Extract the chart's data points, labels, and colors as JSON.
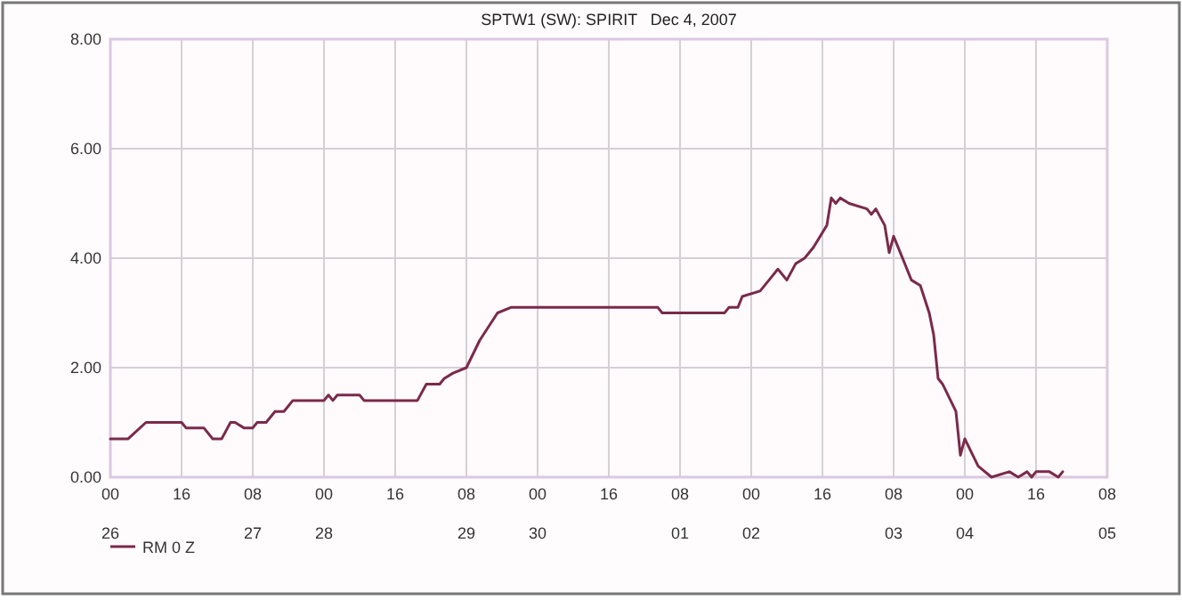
{
  "chart_data": {
    "type": "line",
    "title": "SPTW1 (SW): SPIRIT   Dec 4, 2007",
    "x": [
      "2007-11-26T00:00",
      "2007-11-26T04:00",
      "2007-11-26T08:00",
      "2007-11-26T16:00",
      "2007-11-26T17:00",
      "2007-11-26T21:00",
      "2007-11-26T23:00",
      "2007-11-27T01:00",
      "2007-11-27T03:00",
      "2007-11-27T04:00",
      "2007-11-27T06:00",
      "2007-11-27T08:00",
      "2007-11-27T09:00",
      "2007-11-27T11:00",
      "2007-11-27T13:00",
      "2007-11-27T15:00",
      "2007-11-27T17:00",
      "2007-11-28T00:00",
      "2007-11-28T01:00",
      "2007-11-28T02:00",
      "2007-11-28T03:00",
      "2007-11-28T08:00",
      "2007-11-28T09:00",
      "2007-11-28T21:00",
      "2007-11-28T23:00",
      "2007-11-29T02:00",
      "2007-11-29T03:00",
      "2007-11-29T05:00",
      "2007-11-29T08:00",
      "2007-11-29T11:00",
      "2007-11-29T15:00",
      "2007-11-29T18:00",
      "2007-12-01T03:00",
      "2007-12-01T04:00",
      "2007-12-01T18:00",
      "2007-12-01T19:00",
      "2007-12-01T21:00",
      "2007-12-01T22:00",
      "2007-12-02T02:00",
      "2007-12-02T04:00",
      "2007-12-02T06:00",
      "2007-12-02T08:00",
      "2007-12-02T10:00",
      "2007-12-02T12:00",
      "2007-12-02T14:00",
      "2007-12-02T17:00",
      "2007-12-02T18:00",
      "2007-12-02T19:00",
      "2007-12-02T20:00",
      "2007-12-02T22:00",
      "2007-12-03T02:00",
      "2007-12-03T03:00",
      "2007-12-03T04:00",
      "2007-12-03T06:00",
      "2007-12-03T07:00",
      "2007-12-03T08:00",
      "2007-12-03T12:00",
      "2007-12-03T14:00",
      "2007-12-03T16:00",
      "2007-12-03T17:00",
      "2007-12-03T18:00",
      "2007-12-03T19:00",
      "2007-12-03T22:00",
      "2007-12-03T23:00",
      "2007-12-04T00:00",
      "2007-12-04T03:00",
      "2007-12-04T06:00",
      "2007-12-04T10:00",
      "2007-12-04T12:00",
      "2007-12-04T14:00",
      "2007-12-04T15:00",
      "2007-12-04T16:00",
      "2007-12-04T19:00",
      "2007-12-04T21:00",
      "2007-12-04T22:00"
    ],
    "series": [
      {
        "name": "RM 0 Z",
        "color": "#7a2a4a",
        "values": [
          0.7,
          0.7,
          1.0,
          1.0,
          0.9,
          0.9,
          0.7,
          0.7,
          1.0,
          1.0,
          0.9,
          0.9,
          1.0,
          1.0,
          1.2,
          1.2,
          1.4,
          1.4,
          1.5,
          1.4,
          1.5,
          1.5,
          1.4,
          1.4,
          1.7,
          1.7,
          1.8,
          1.9,
          2.0,
          2.5,
          3.0,
          3.1,
          3.1,
          3.0,
          3.0,
          3.1,
          3.1,
          3.3,
          3.4,
          3.6,
          3.8,
          3.6,
          3.9,
          4.0,
          4.2,
          4.6,
          5.1,
          5.0,
          5.1,
          5.0,
          4.9,
          4.8,
          4.9,
          4.6,
          4.1,
          4.4,
          3.6,
          3.5,
          3.0,
          2.6,
          1.8,
          1.7,
          1.2,
          0.4,
          0.7,
          0.2,
          0.0,
          0.1,
          0.0,
          0.1,
          0.0,
          0.1,
          0.1,
          0.0,
          0.1
        ]
      }
    ],
    "xlim": [
      "2007-11-26T00:00",
      "2007-12-05T08:00"
    ],
    "xticks": [
      {
        "value": "2007-11-26T00:00",
        "label": "00"
      },
      {
        "value": "2007-11-26T16:00",
        "label": "16"
      },
      {
        "value": "2007-11-27T08:00",
        "label": "08"
      },
      {
        "value": "2007-11-28T00:00",
        "label": "00"
      },
      {
        "value": "2007-11-28T16:00",
        "label": "16"
      },
      {
        "value": "2007-11-29T08:00",
        "label": "08"
      },
      {
        "value": "2007-11-30T00:00",
        "label": "00"
      },
      {
        "value": "2007-11-30T16:00",
        "label": "16"
      },
      {
        "value": "2007-12-01T08:00",
        "label": "08"
      },
      {
        "value": "2007-12-02T00:00",
        "label": "00"
      },
      {
        "value": "2007-12-02T16:00",
        "label": "16"
      },
      {
        "value": "2007-12-03T08:00",
        "label": "08"
      },
      {
        "value": "2007-12-04T00:00",
        "label": "00"
      },
      {
        "value": "2007-12-04T16:00",
        "label": "16"
      },
      {
        "value": "2007-12-05T08:00",
        "label": "08"
      }
    ],
    "x2lim": [
      "2007-11-26T00:00",
      "2007-12-05T08:00"
    ],
    "x2ticks": [
      {
        "value": "2007-11-26T00:00",
        "label": "26"
      },
      {
        "value": "2007-11-27T08:00",
        "label": "27"
      },
      {
        "value": "2007-11-28T00:00",
        "label": "28"
      },
      {
        "value": "2007-11-29T08:00",
        "label": "29"
      },
      {
        "value": "2007-11-30T00:00",
        "label": "30"
      },
      {
        "value": "2007-12-01T08:00",
        "label": "01"
      },
      {
        "value": "2007-12-02T00:00",
        "label": "02"
      },
      {
        "value": "2007-12-03T08:00",
        "label": "03"
      },
      {
        "value": "2007-12-04T00:00",
        "label": "04"
      },
      {
        "value": "2007-12-05T08:00",
        "label": "05"
      }
    ],
    "ylim": [
      0,
      8
    ],
    "yticks": [
      {
        "value": 0,
        "label": "0.00"
      },
      {
        "value": 2,
        "label": "2.00"
      },
      {
        "value": 4,
        "label": "4.00"
      },
      {
        "value": 6,
        "label": "6.00"
      },
      {
        "value": 8,
        "label": "8.00"
      }
    ],
    "grid": true,
    "legend": "bottom left",
    "line_style": "solid",
    "marker": "none"
  }
}
